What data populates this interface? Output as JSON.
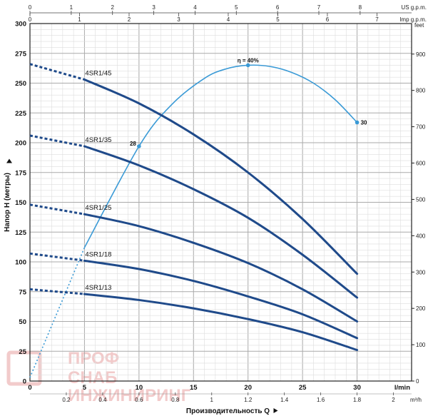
{
  "chart_data": {
    "type": "line",
    "y_axis_left": {
      "label": "Напор H (метры)",
      "ticks": [
        0,
        25,
        50,
        75,
        100,
        125,
        150,
        175,
        200,
        225,
        250,
        275,
        300
      ],
      "range": [
        0,
        300
      ]
    },
    "y_axis_right": {
      "unit": "feet",
      "ticks": [
        0,
        100,
        200,
        300,
        400,
        500,
        600,
        700,
        800,
        900
      ],
      "range": [
        0,
        984
      ]
    },
    "x_axis_main": {
      "label": "Производительность Q",
      "unit": "l/min",
      "ticks": [
        0,
        5,
        10,
        15,
        20,
        25,
        30
      ],
      "range": [
        0,
        35
      ]
    },
    "x_axis_m3h": {
      "unit": "m³/h",
      "ticks": [
        "0.2",
        "0.4",
        "0.6",
        "0.8",
        "1",
        "1.2",
        "1.4",
        "1.6",
        "1.8",
        "2"
      ],
      "values": [
        0.2,
        0.4,
        0.6,
        0.8,
        1.0,
        1.2,
        1.4,
        1.6,
        1.8,
        2.0
      ]
    },
    "x_axis_us": {
      "unit": "US g.p.m.",
      "ticks": [
        0,
        1,
        2,
        3,
        4,
        5,
        6,
        7,
        8
      ]
    },
    "x_axis_imp": {
      "unit": "Imp g.p.m.",
      "ticks": [
        0,
        1,
        2,
        3,
        4,
        5,
        6,
        7
      ]
    },
    "grid": true,
    "series": [
      {
        "name": "4SR1/45",
        "x": [
          0,
          5,
          10,
          15,
          20,
          25,
          30
        ],
        "y": [
          266,
          253,
          233,
          207,
          175,
          136,
          90
        ],
        "dashed_until": 5
      },
      {
        "name": "4SR1/35",
        "x": [
          0,
          5,
          10,
          15,
          20,
          25,
          30
        ],
        "y": [
          206,
          197,
          181,
          161,
          137,
          106,
          70
        ],
        "dashed_until": 5
      },
      {
        "name": "4SR1/25",
        "x": [
          0,
          5,
          10,
          15,
          20,
          25,
          30
        ],
        "y": [
          148,
          140,
          130,
          116,
          99,
          77,
          50
        ],
        "dashed_until": 5
      },
      {
        "name": "4SR1/18",
        "x": [
          0,
          5,
          10,
          15,
          20,
          25,
          30
        ],
        "y": [
          107,
          101,
          94,
          84,
          71,
          56,
          36
        ],
        "dashed_until": 5
      },
      {
        "name": "4SR1/13",
        "x": [
          0,
          5,
          10,
          15,
          20,
          25,
          30
        ],
        "y": [
          77,
          73,
          68,
          61,
          52,
          41,
          26
        ],
        "dashed_until": 5
      }
    ],
    "efficiency": {
      "x": [
        0,
        5,
        10,
        13,
        16,
        18,
        20,
        22,
        24,
        26,
        28,
        30
      ],
      "y": [
        3,
        112,
        197,
        232,
        254,
        262,
        265,
        264,
        259,
        250,
        236,
        217
      ],
      "dashed_until": 5,
      "labels": [
        {
          "text": "28",
          "x": 10,
          "y": 197
        },
        {
          "text": "η = 40%",
          "x": 20,
          "y": 265
        },
        {
          "text": "30",
          "x": 30,
          "y": 217
        }
      ]
    }
  },
  "colors": {
    "curve": "#1f4a8a",
    "efficiency": "#3a9ad6",
    "grid": "#cccccc",
    "watermark": "#e8a0a0"
  },
  "watermark": {
    "line1": "ПРОФ",
    "line2": "СНАБ",
    "line3": "ИНЖИНИРИНГ"
  }
}
